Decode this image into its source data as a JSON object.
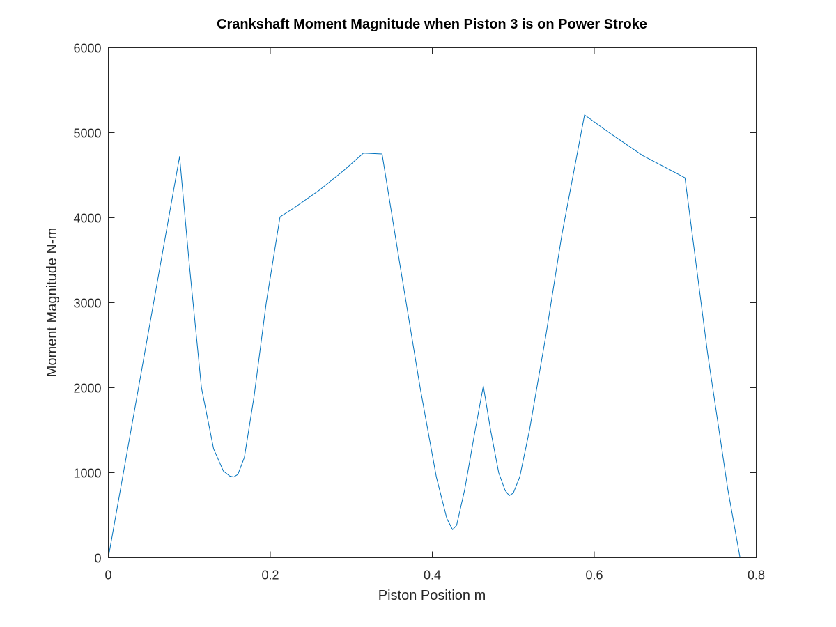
{
  "chart_data": {
    "type": "line",
    "title": "Crankshaft Moment Magnitude when Piston 3 is on Power Stroke",
    "xlabel": "Piston Position m",
    "ylabel": "Moment Magnitude N-m",
    "xlim": [
      0,
      0.8
    ],
    "ylim": [
      0,
      6000
    ],
    "xticks": [
      0,
      0.2,
      0.4,
      0.6,
      0.8
    ],
    "xtick_labels": [
      "0",
      "0.2",
      "0.4",
      "0.6",
      "0.8"
    ],
    "yticks": [
      0,
      1000,
      2000,
      3000,
      4000,
      5000,
      6000
    ],
    "ytick_labels": [
      "0",
      "1000",
      "2000",
      "3000",
      "4000",
      "5000",
      "6000"
    ],
    "grid": false,
    "series": [
      {
        "color": "#0072BD",
        "x": [
          0,
          0.088,
          0.1,
          0.115,
          0.13,
          0.142,
          0.15,
          0.155,
          0.16,
          0.168,
          0.18,
          0.195,
          0.212,
          0.23,
          0.26,
          0.29,
          0.315,
          0.338,
          0.36,
          0.385,
          0.405,
          0.418,
          0.425,
          0.43,
          0.44,
          0.452,
          0.463,
          0.472,
          0.482,
          0.49,
          0.495,
          0.5,
          0.508,
          0.52,
          0.54,
          0.56,
          0.588,
          0.62,
          0.66,
          0.69,
          0.712,
          0.74,
          0.765,
          0.78
        ],
        "y": [
          0,
          4720,
          3450,
          2000,
          1280,
          1020,
          960,
          950,
          980,
          1180,
          1900,
          3000,
          4010,
          4120,
          4320,
          4550,
          4760,
          4750,
          3450,
          2000,
          950,
          460,
          330,
          380,
          800,
          1450,
          2020,
          1500,
          1000,
          790,
          730,
          760,
          950,
          1500,
          2600,
          3800,
          5210,
          4990,
          4730,
          4580,
          4470,
          2400,
          800,
          0
        ]
      }
    ]
  }
}
